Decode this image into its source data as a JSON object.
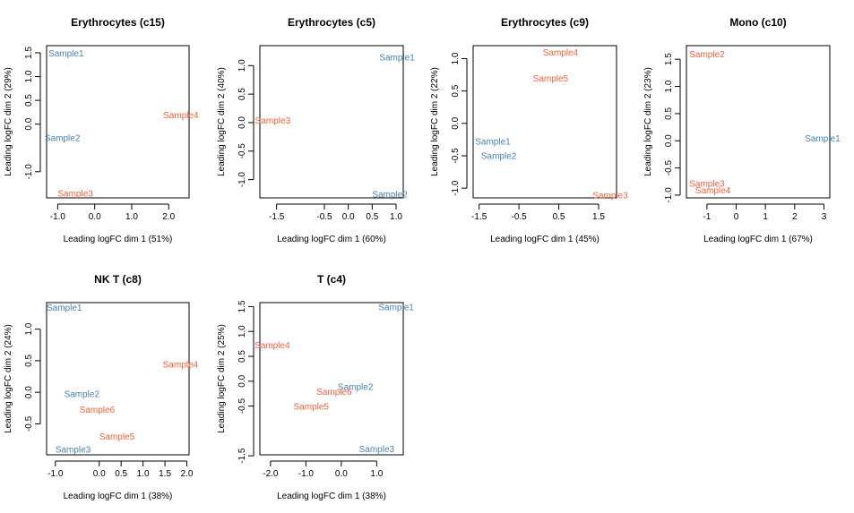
{
  "colors": {
    "group_blue": "#4682B4",
    "group_red": "#F4603F"
  },
  "chart_data": [
    {
      "type": "scatter",
      "title": "Erythrocytes (c15)",
      "xlabel": "Leading logFC dim 1 (51%)",
      "ylabel": "Leading logFC dim 2 (29%)",
      "xlim": [
        -1.3,
        2.55
      ],
      "ylim": [
        -1.55,
        1.65
      ],
      "xticks": [
        -1.0,
        0.0,
        1.0,
        2.0
      ],
      "xticklabels": [
        "-1.0",
        "0.0",
        "1.0",
        "2.0"
      ],
      "yticks": [
        -1.0,
        0.0,
        0.5,
        1.0,
        1.5
      ],
      "yticklabels": [
        "-1.0",
        "0.0",
        "0.5",
        "1.0",
        "1.5"
      ],
      "points": [
        {
          "label": "Sample1",
          "x": -1.25,
          "y": 1.5,
          "color": "blue"
        },
        {
          "label": "Sample2",
          "x": -1.35,
          "y": -0.28,
          "color": "blue"
        },
        {
          "label": "Sample3",
          "x": -1.0,
          "y": -1.45,
          "color": "red"
        },
        {
          "label": "Sample4",
          "x": 1.85,
          "y": 0.2,
          "color": "red"
        }
      ]
    },
    {
      "type": "scatter",
      "title": "Erythrocytes (c5)",
      "xlabel": "Leading logFC dim 1 (60%)",
      "ylabel": "Leading logFC dim 2 (40%)",
      "xlim": [
        -1.85,
        1.15
      ],
      "ylim": [
        -1.32,
        1.35
      ],
      "xticks": [
        -1.5,
        -0.5,
        0.0,
        0.5,
        1.0
      ],
      "xticklabels": [
        "-1.5",
        "-0.5",
        "0.0",
        "0.5",
        "1.0"
      ],
      "yticks": [
        -1.0,
        -0.5,
        0.0,
        0.5,
        1.0
      ],
      "yticklabels": [
        "-1.0",
        "-0.5",
        "0.0",
        "0.5",
        "1.0"
      ],
      "points": [
        {
          "label": "Sample1",
          "x": 0.65,
          "y": 1.15,
          "color": "blue"
        },
        {
          "label": "Sample2",
          "x": 0.5,
          "y": -1.25,
          "color": "blue"
        },
        {
          "label": "Sample3",
          "x": -1.95,
          "y": 0.05,
          "color": "red"
        }
      ]
    },
    {
      "type": "scatter",
      "title": "Erythrocytes (c9)",
      "xlabel": "Leading logFC dim 1 (45%)",
      "ylabel": "Leading logFC dim 2 (22%)",
      "xlim": [
        -1.65,
        1.95
      ],
      "ylim": [
        -1.15,
        1.2
      ],
      "xticks": [
        -1.5,
        -0.5,
        0.5,
        1.5
      ],
      "xticklabels": [
        "-1.5",
        "-0.5",
        "0.5",
        "1.5"
      ],
      "yticks": [
        -1.0,
        -0.5,
        0.0,
        0.5,
        1.0
      ],
      "yticklabels": [
        "-1.0",
        "-0.5",
        "0.0",
        "0.5",
        "1.0"
      ],
      "points": [
        {
          "label": "Sample1",
          "x": -1.6,
          "y": -0.27,
          "color": "blue"
        },
        {
          "label": "Sample2",
          "x": -1.45,
          "y": -0.49,
          "color": "blue"
        },
        {
          "label": "Sample3",
          "x": 1.35,
          "y": -1.1,
          "color": "red"
        },
        {
          "label": "Sample4",
          "x": 0.1,
          "y": 1.1,
          "color": "red"
        },
        {
          "label": "Sample5",
          "x": -0.15,
          "y": 0.7,
          "color": "red"
        }
      ]
    },
    {
      "type": "scatter",
      "title": "Mono (c10)",
      "xlabel": "Leading logFC dim 1 (67%)",
      "ylabel": "Leading logFC dim 2 (23%)",
      "xlim": [
        -1.7,
        3.2
      ],
      "ylim": [
        -1.05,
        1.75
      ],
      "xticks": [
        -1,
        0,
        1,
        2,
        3
      ],
      "xticklabels": [
        "-1",
        "0",
        "1",
        "2",
        "3"
      ],
      "yticks": [
        -1.0,
        -0.5,
        0.0,
        0.5,
        1.0,
        1.5
      ],
      "yticklabels": [
        "-1.0",
        "-0.5",
        "0.0",
        "0.5",
        "1.0",
        "1.5"
      ],
      "points": [
        {
          "label": "Sample1",
          "x": 2.35,
          "y": 0.05,
          "color": "blue"
        },
        {
          "label": "Sample2",
          "x": -1.6,
          "y": 1.6,
          "color": "red"
        },
        {
          "label": "Sample3",
          "x": -1.6,
          "y": -0.78,
          "color": "red"
        },
        {
          "label": "Sample4",
          "x": -1.4,
          "y": -0.9,
          "color": "red"
        }
      ]
    },
    {
      "type": "scatter",
      "title": "NK T (c8)",
      "xlabel": "Leading logFC dim 1 (38%)",
      "ylabel": "Leading logFC dim 2 (24%)",
      "xlim": [
        -1.2,
        2.05
      ],
      "ylim": [
        -0.99,
        1.42
      ],
      "xticks": [
        -1.0,
        0.0,
        0.5,
        1.0,
        1.5,
        2.0
      ],
      "xticklabels": [
        "-1.0",
        "0.0",
        "0.5",
        "1.0",
        "1.5",
        "2.0"
      ],
      "yticks": [
        -0.5,
        0.0,
        0.5,
        1.0
      ],
      "yticklabels": [
        "-0.5",
        "0.0",
        "0.5",
        "1.0"
      ],
      "points": [
        {
          "label": "Sample1",
          "x": -1.2,
          "y": 1.35,
          "color": "blue"
        },
        {
          "label": "Sample2",
          "x": -0.8,
          "y": -0.02,
          "color": "blue"
        },
        {
          "label": "Sample3",
          "x": -1.0,
          "y": -0.9,
          "color": "blue"
        },
        {
          "label": "Sample4",
          "x": 1.45,
          "y": 0.45,
          "color": "red"
        },
        {
          "label": "Sample5",
          "x": 0.0,
          "y": -0.69,
          "color": "red"
        },
        {
          "label": "Sample6",
          "x": -0.45,
          "y": -0.27,
          "color": "red"
        }
      ]
    },
    {
      "type": "scatter",
      "title": "T (c4)",
      "xlabel": "Leading logFC dim 1 (38%)",
      "ylabel": "Leading logFC dim 2 (25%)",
      "xlim": [
        -2.3,
        1.75
      ],
      "ylim": [
        -1.48,
        1.58
      ],
      "xticks": [
        -2.0,
        -1.0,
        0.0,
        1.0
      ],
      "xticklabels": [
        "-2.0",
        "-1.0",
        "0.0",
        "1.0"
      ],
      "yticks": [
        -1.5,
        -0.5,
        0.0,
        0.5,
        1.0,
        1.5
      ],
      "yticklabels": [
        "-1.5",
        "-0.5",
        "0.0",
        "0.5",
        "1.0",
        "1.5"
      ],
      "points": [
        {
          "label": "Sample1",
          "x": 1.05,
          "y": 1.5,
          "color": "blue"
        },
        {
          "label": "Sample2",
          "x": -0.1,
          "y": -0.1,
          "color": "blue"
        },
        {
          "label": "Sample3",
          "x": 0.5,
          "y": -1.35,
          "color": "blue"
        },
        {
          "label": "Sample4",
          "x": -2.45,
          "y": 0.73,
          "color": "red"
        },
        {
          "label": "Sample5",
          "x": -1.35,
          "y": -0.5,
          "color": "red"
        },
        {
          "label": "Sample6",
          "x": -0.7,
          "y": -0.2,
          "color": "red"
        }
      ]
    }
  ]
}
